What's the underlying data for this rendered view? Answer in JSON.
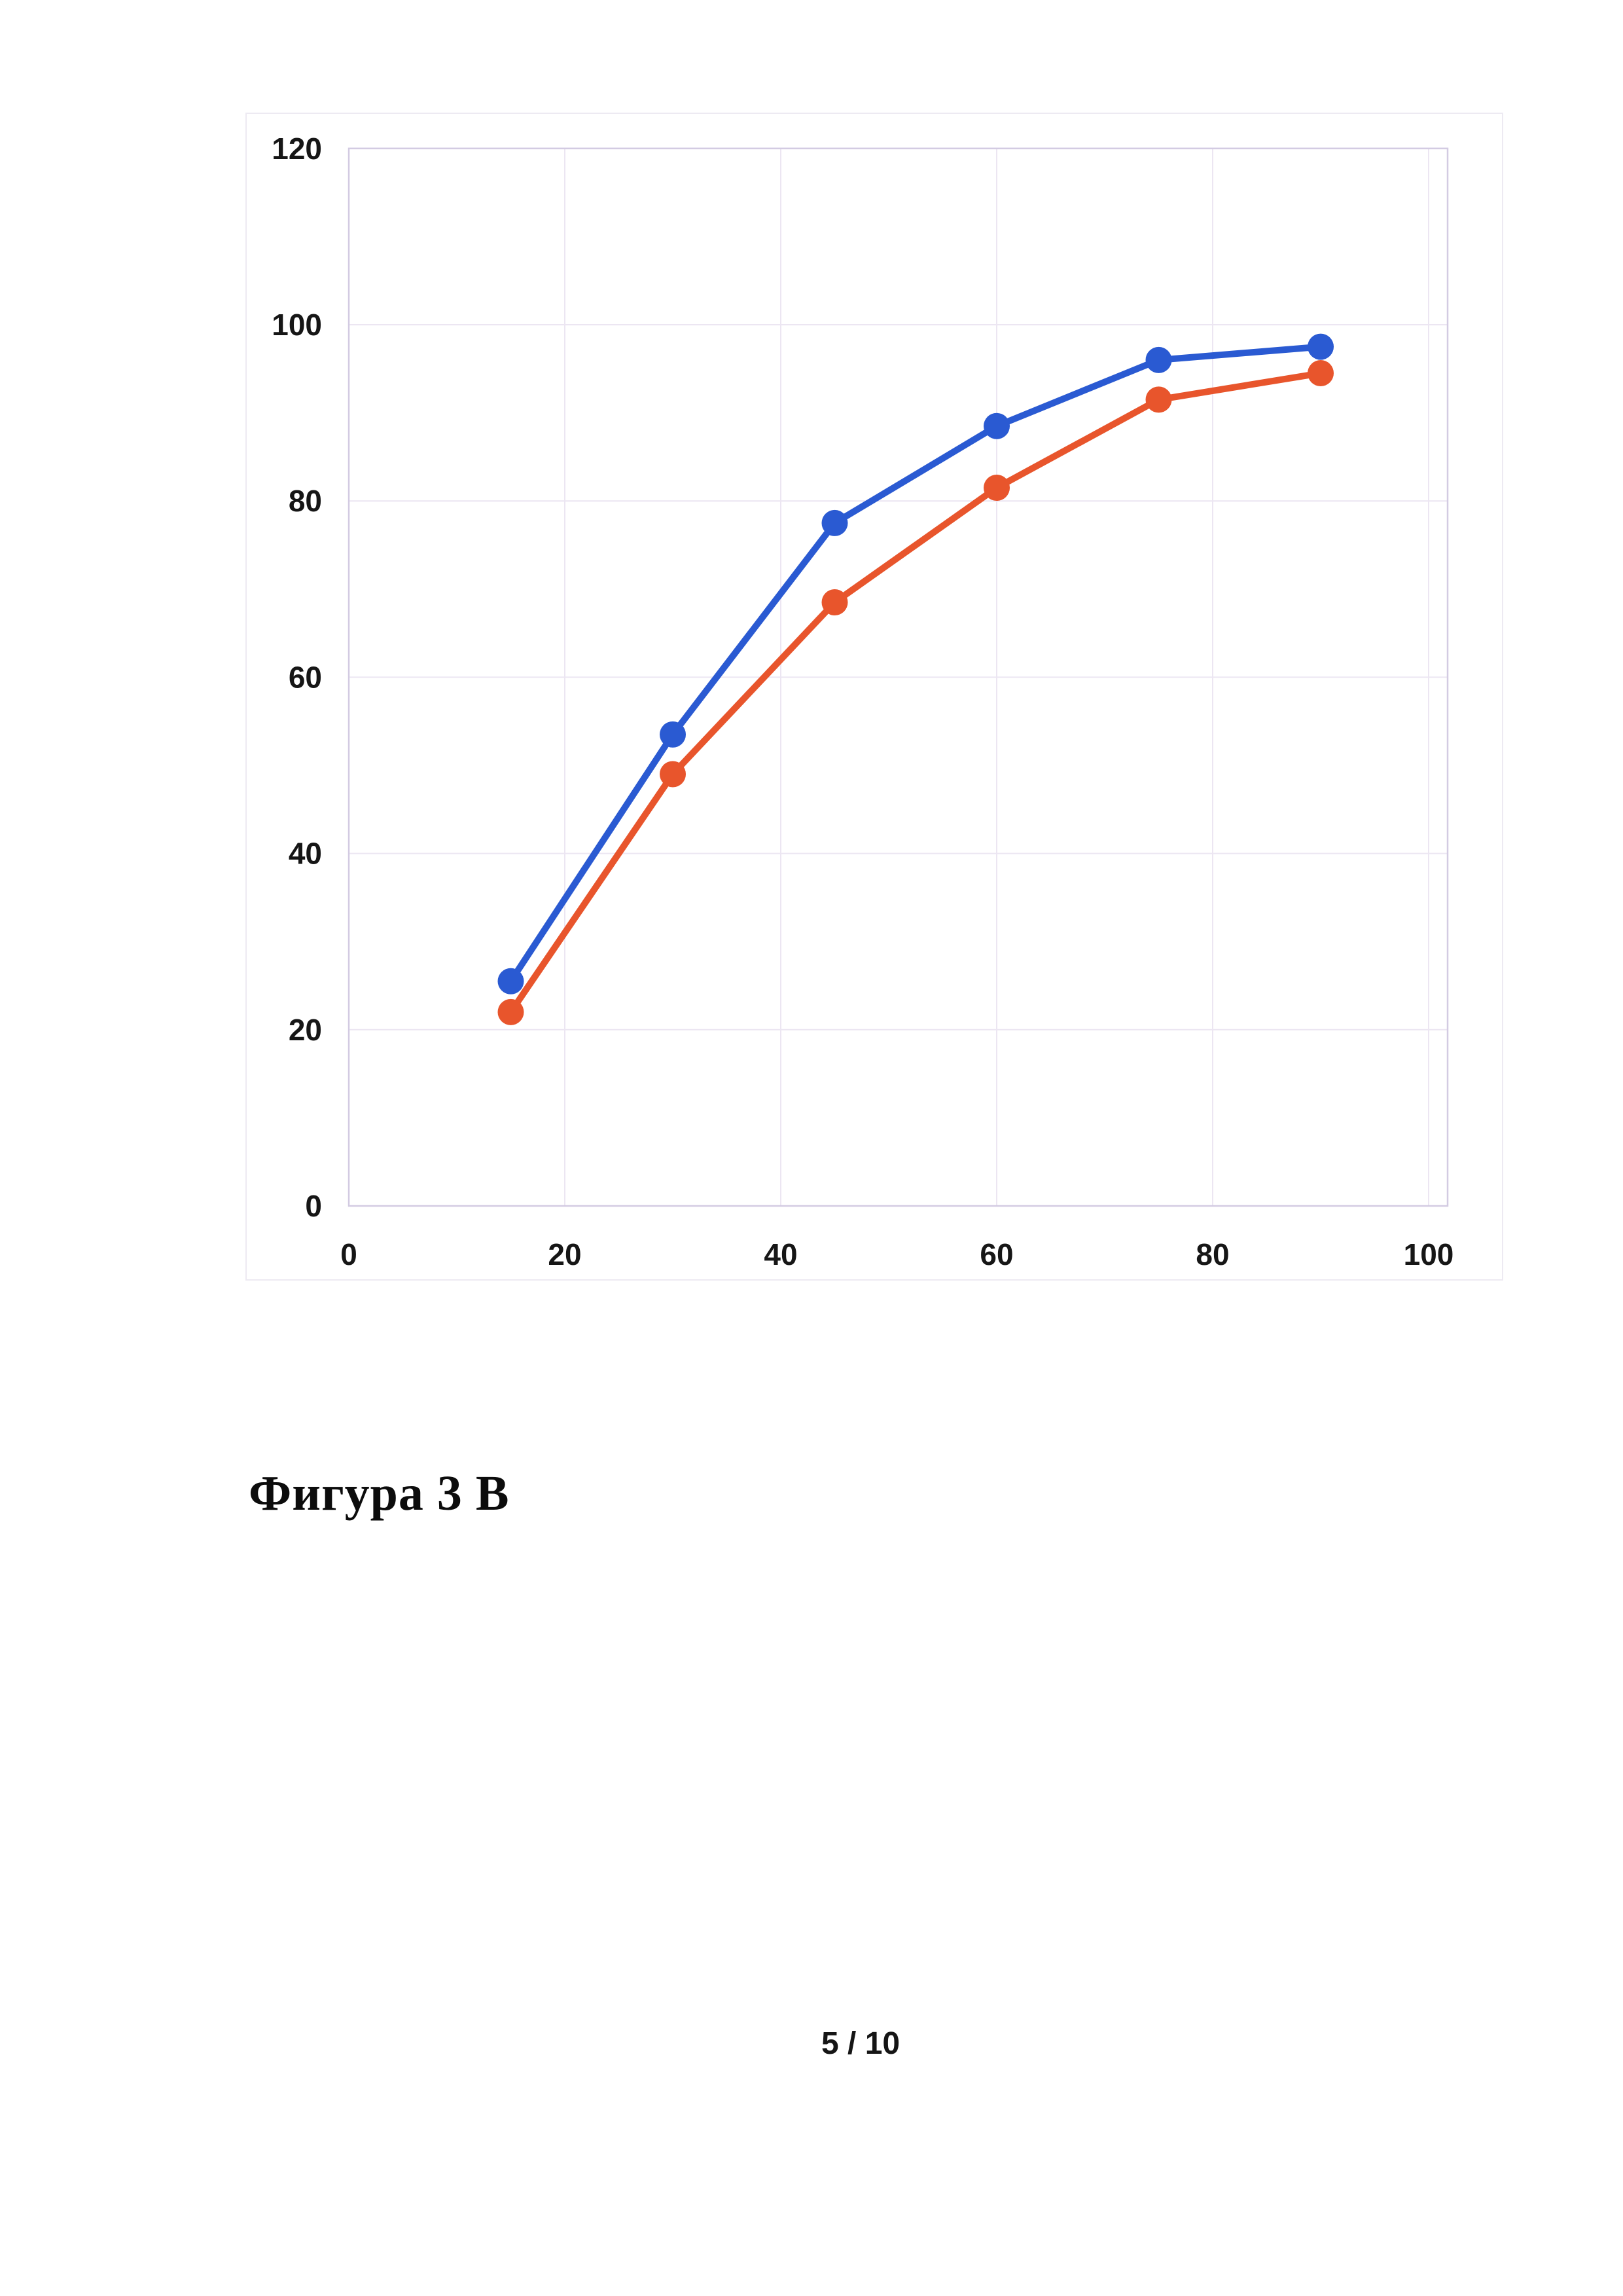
{
  "page": {
    "caption": "Фигура 3 В",
    "page_number": "5 / 10"
  },
  "chart_data": {
    "type": "line",
    "x": [
      15,
      30,
      45,
      60,
      75,
      90
    ],
    "series": [
      {
        "name": "blue-series",
        "color": "#2a5ad2",
        "marker": "circle",
        "values": [
          25.5,
          53.5,
          77.5,
          88.5,
          96,
          97.5
        ]
      },
      {
        "name": "orange-series",
        "color": "#e8552c",
        "marker": "circle",
        "values": [
          22,
          49,
          68.5,
          81.5,
          91.5,
          94.5
        ]
      }
    ],
    "title": "",
    "xlabel": "",
    "ylabel": "",
    "xlim": [
      0,
      100
    ],
    "ylim": [
      0,
      120
    ],
    "x_ticks": [
      0,
      20,
      40,
      60,
      80,
      100
    ],
    "y_ticks": [
      0,
      20,
      40,
      60,
      80,
      100,
      120
    ],
    "grid": true,
    "legend": "none",
    "colors": {
      "tick_text": "#161616",
      "gridline": "#ece6f2",
      "plot_border": "#d3cbe2",
      "chart_frame": "#e9e5ef"
    }
  }
}
